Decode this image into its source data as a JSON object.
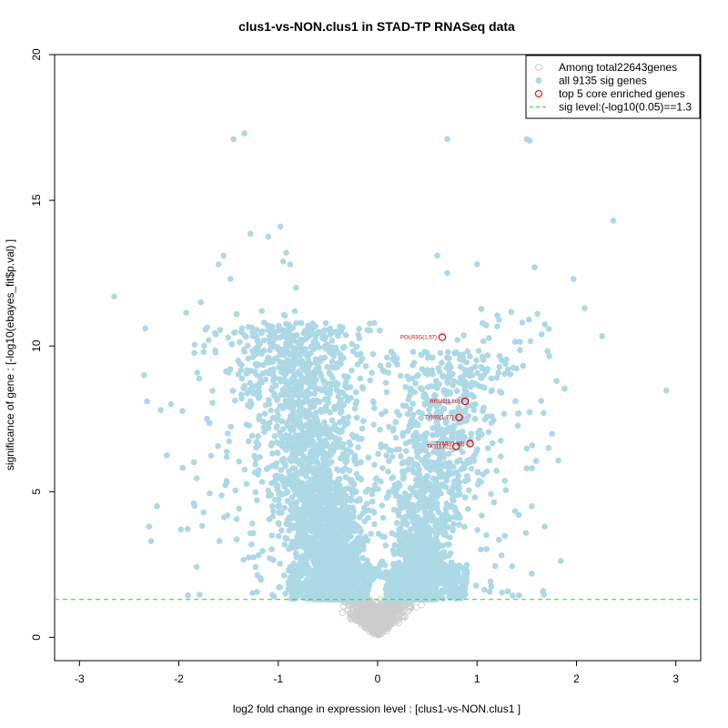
{
  "chart_data": {
    "type": "scatter",
    "title": "clus1-vs-NON.clus1 in STAD-TP RNASeq data",
    "xlabel": "log2 fold change in expression level : [clus1-vs-NON.clus1 ]",
    "ylabel": "significance of gene : [-log10(ebayes_fit$p.val) ]",
    "xlim": [
      -3.0,
      3.0
    ],
    "ylim": [
      0,
      20
    ],
    "x_ticks": [
      "-3",
      "-2",
      "-1",
      "0",
      "1",
      "2",
      "3"
    ],
    "y_ticks": [
      "0",
      "5",
      "10",
      "15",
      "20"
    ],
    "sig_threshold": 1.3,
    "legend": {
      "position": "top-right",
      "entries": [
        {
          "label": "Among total22643genes",
          "marker": "open-circle",
          "color": "#cccccc"
        },
        {
          "label": "all 9135 sig genes",
          "marker": "filled-circle",
          "color": "#add8e6"
        },
        {
          "label": "top 5 core enriched genes",
          "marker": "open-circle",
          "color": "#dd0000"
        },
        {
          "label": "sig level:(-log10(0.05)==1.3",
          "marker": "dashed-line",
          "color": "#33cc33"
        }
      ]
    },
    "top_genes": [
      {
        "label": "POLR3G(1.57)",
        "x": 0.65,
        "y": 10.3
      },
      {
        "label": "RRM1(1.86)",
        "x": 0.88,
        "y": 8.1
      },
      {
        "label": "TYMS(1.77)",
        "x": 0.82,
        "y": 7.55
      },
      {
        "label": "TYMP(1.88)",
        "x": 0.93,
        "y": 6.65
      },
      {
        "label": "TK1(1.82)",
        "x": 0.79,
        "y": 6.55
      }
    ],
    "notable_points": [
      [
        -2.65,
        11.7
      ],
      [
        -2.35,
        9.0
      ],
      [
        -2.32,
        8.1
      ],
      [
        -2.3,
        3.8
      ],
      [
        -2.28,
        3.3
      ],
      [
        -2.22,
        4.5
      ],
      [
        -2.12,
        6.25
      ],
      [
        -2.08,
        8.0
      ],
      [
        -1.98,
        3.7
      ],
      [
        -1.85,
        4.6
      ],
      [
        -1.78,
        11.5
      ],
      [
        -1.7,
        10.2
      ],
      [
        -1.6,
        12.8
      ],
      [
        -1.55,
        13.1
      ],
      [
        -1.48,
        12.3
      ],
      [
        -1.45,
        17.1
      ],
      [
        -1.34,
        17.3
      ],
      [
        -1.28,
        13.85
      ],
      [
        -1.1,
        13.75
      ],
      [
        -0.98,
        14.1
      ],
      [
        -0.92,
        13.2
      ],
      [
        -0.95,
        12.9
      ],
      [
        -0.88,
        12.8
      ],
      [
        -0.82,
        12.0
      ],
      [
        1.5,
        17.1
      ],
      [
        0.7,
        17.1
      ],
      [
        1.53,
        17.05
      ],
      [
        2.37,
        14.3
      ],
      [
        1.58,
        12.7
      ],
      [
        1.97,
        12.3
      ],
      [
        1.0,
        12.8
      ],
      [
        0.6,
        13.1
      ],
      [
        0.7,
        12.5
      ],
      [
        1.65,
        10.4
      ],
      [
        1.8,
        8.8
      ],
      [
        1.72,
        6.5
      ],
      [
        1.5,
        5.8
      ],
      [
        1.67,
        7.7
      ],
      [
        1.55,
        4.5
      ],
      [
        1.42,
        4.2
      ]
    ],
    "series_summary": {
      "sig_genes_count": 9135,
      "total_genes_count": 22643
    }
  }
}
